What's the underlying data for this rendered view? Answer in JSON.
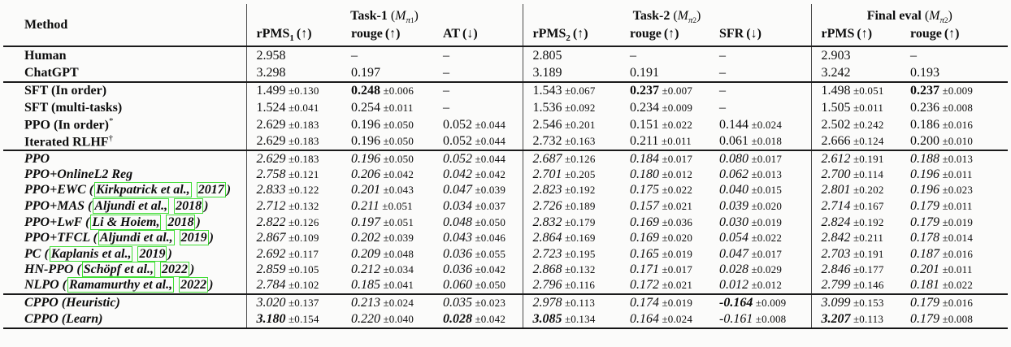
{
  "colors": {
    "citation_link_box": "#3fdd34",
    "rule": "#1b1b1b",
    "text": "#0d0d0d"
  },
  "header": {
    "method_label": "Method",
    "groups": [
      {
        "label": "Task-1",
        "mopen": " (",
        "mvar": "M",
        "msub": "π",
        "msubsub": "1",
        "mclose": ")",
        "cols": [
          {
            "label": "rPMS",
            "sub": "1",
            "arrow": "(↑)"
          },
          {
            "label": "rouge",
            "sub": "",
            "arrow": "(↑)"
          },
          {
            "label": "AT",
            "sub": "",
            "arrow": "(↓)"
          }
        ]
      },
      {
        "label": "Task-2",
        "mopen": " (",
        "mvar": "M",
        "msub": "π",
        "msubsub": "2",
        "mclose": ")",
        "cols": [
          {
            "label": "rPMS",
            "sub": "2",
            "arrow": "(↑)"
          },
          {
            "label": "rouge",
            "sub": "",
            "arrow": "(↑)"
          },
          {
            "label": "SFR",
            "sub": "",
            "arrow": "(↓)"
          }
        ]
      },
      {
        "label": "Final eval",
        "mopen": " (",
        "mvar": "M",
        "msub": "π",
        "msubsub": "2",
        "mclose": ")",
        "cols": [
          {
            "label": "rPMS",
            "sub": "",
            "arrow": "(↑)"
          },
          {
            "label": "rouge",
            "sub": "",
            "arrow": "(↑)"
          }
        ]
      }
    ]
  },
  "blocks": [
    {
      "style": "roman",
      "rows": [
        {
          "method": {
            "text": "Human"
          },
          "cells": [
            {
              "v": "2.958"
            },
            {
              "v": "–"
            },
            {
              "v": "–"
            },
            {
              "v": "2.805"
            },
            {
              "v": "–"
            },
            {
              "v": "–"
            },
            {
              "v": "2.903"
            },
            {
              "v": "–"
            }
          ]
        },
        {
          "method": {
            "text": "ChatGPT"
          },
          "cells": [
            {
              "v": "3.298"
            },
            {
              "v": "0.197"
            },
            {
              "v": "–"
            },
            {
              "v": "3.189"
            },
            {
              "v": "0.191"
            },
            {
              "v": "–"
            },
            {
              "v": "3.242"
            },
            {
              "v": "0.193"
            }
          ]
        }
      ]
    },
    {
      "style": "roman",
      "rows": [
        {
          "method": {
            "text": "SFT (In order)"
          },
          "cells": [
            {
              "v": "1.499",
              "pm": "±0.130"
            },
            {
              "v": "0.248",
              "pm": "±0.006",
              "b": true
            },
            {
              "v": "–"
            },
            {
              "v": "1.543",
              "pm": "±0.067"
            },
            {
              "v": "0.237",
              "pm": "±0.007",
              "b": true
            },
            {
              "v": "–"
            },
            {
              "v": "1.498",
              "pm": "±0.051"
            },
            {
              "v": "0.237",
              "pm": "±0.009",
              "b": true
            }
          ]
        },
        {
          "method": {
            "text": "SFT (multi-tasks)"
          },
          "cells": [
            {
              "v": "1.524",
              "pm": "±0.041"
            },
            {
              "v": "0.254",
              "pm": "±0.011"
            },
            {
              "v": "–"
            },
            {
              "v": "1.536",
              "pm": "±0.092"
            },
            {
              "v": "0.234",
              "pm": "±0.009"
            },
            {
              "v": "–"
            },
            {
              "v": "1.505",
              "pm": "±0.011"
            },
            {
              "v": "0.236",
              "pm": "±0.008"
            }
          ]
        },
        {
          "method": {
            "text": "PPO (In order)",
            "sup": "*"
          },
          "cells": [
            {
              "v": "2.629",
              "pm": "±0.183"
            },
            {
              "v": "0.196",
              "pm": "±0.050"
            },
            {
              "v": "0.052",
              "pm": "±0.044"
            },
            {
              "v": "2.546",
              "pm": "±0.201"
            },
            {
              "v": "0.151",
              "pm": "±0.022"
            },
            {
              "v": "0.144",
              "pm": "±0.024"
            },
            {
              "v": "2.502",
              "pm": "±0.242"
            },
            {
              "v": "0.186",
              "pm": "±0.016"
            }
          ]
        },
        {
          "method": {
            "text": "Iterated RLHF",
            "sup": "†"
          },
          "cells": [
            {
              "v": "2.629",
              "pm": "±0.183"
            },
            {
              "v": "0.196",
              "pm": "±0.050"
            },
            {
              "v": "0.052",
              "pm": "±0.044"
            },
            {
              "v": "2.732",
              "pm": "±0.163"
            },
            {
              "v": "0.211",
              "pm": "±0.011"
            },
            {
              "v": "0.061",
              "pm": "±0.018"
            },
            {
              "v": "2.666",
              "pm": "±0.124"
            },
            {
              "v": "0.200",
              "pm": "±0.010"
            }
          ]
        }
      ]
    },
    {
      "style": "italic",
      "rows": [
        {
          "method": {
            "text": "PPO"
          },
          "cells": [
            {
              "v": "2.629",
              "pm": "±0.183"
            },
            {
              "v": "0.196",
              "pm": "±0.050"
            },
            {
              "v": "0.052",
              "pm": "±0.044"
            },
            {
              "v": "2.687",
              "pm": "±0.126"
            },
            {
              "v": "0.184",
              "pm": "±0.017"
            },
            {
              "v": "0.080",
              "pm": "±0.017"
            },
            {
              "v": "2.612",
              "pm": "±0.191"
            },
            {
              "v": "0.188",
              "pm": "±0.013"
            }
          ]
        },
        {
          "method": {
            "text": "PPO+OnlineL2 Reg"
          },
          "cells": [
            {
              "v": "2.758",
              "pm": "±0.121"
            },
            {
              "v": "0.206",
              "pm": "±0.042"
            },
            {
              "v": "0.042",
              "pm": "±0.042"
            },
            {
              "v": "2.701",
              "pm": "±0.205"
            },
            {
              "v": "0.180",
              "pm": "±0.012"
            },
            {
              "v": "0.062",
              "pm": "±0.013"
            },
            {
              "v": "2.700",
              "pm": "±0.114"
            },
            {
              "v": "0.196",
              "pm": "±0.011"
            }
          ]
        },
        {
          "method": {
            "text": "PPO+EWC (",
            "authors": "Kirkpatrick et al.,",
            "year": "2017",
            "close": ")"
          },
          "cells": [
            {
              "v": "2.833",
              "pm": "±0.122"
            },
            {
              "v": "0.201",
              "pm": "±0.043"
            },
            {
              "v": "0.047",
              "pm": "±0.039"
            },
            {
              "v": "2.823",
              "pm": "±0.192"
            },
            {
              "v": "0.175",
              "pm": "±0.022"
            },
            {
              "v": "0.040",
              "pm": "±0.015"
            },
            {
              "v": "2.801",
              "pm": "±0.202"
            },
            {
              "v": "0.196",
              "pm": "±0.023"
            }
          ]
        },
        {
          "method": {
            "text": "PPO+MAS (",
            "authors": "Aljundi et al.,",
            "year": "2018",
            "close": ")"
          },
          "cells": [
            {
              "v": "2.712",
              "pm": "±0.132"
            },
            {
              "v": "0.211",
              "pm": "±0.051"
            },
            {
              "v": "0.034",
              "pm": "±0.037"
            },
            {
              "v": "2.726",
              "pm": "±0.189"
            },
            {
              "v": "0.157",
              "pm": "±0.021"
            },
            {
              "v": "0.039",
              "pm": "±0.020"
            },
            {
              "v": "2.714",
              "pm": "±0.167"
            },
            {
              "v": "0.179",
              "pm": "±0.011"
            }
          ]
        },
        {
          "method": {
            "text": "PPO+LwF (",
            "authors": "Li & Hoiem,",
            "year": "2018",
            "close": ")"
          },
          "cells": [
            {
              "v": "2.822",
              "pm": "±0.126"
            },
            {
              "v": "0.197",
              "pm": "±0.051"
            },
            {
              "v": "0.048",
              "pm": "±0.050"
            },
            {
              "v": "2.832",
              "pm": "±0.179"
            },
            {
              "v": "0.169",
              "pm": "±0.036"
            },
            {
              "v": "0.030",
              "pm": "±0.019"
            },
            {
              "v": "2.824",
              "pm": "±0.192"
            },
            {
              "v": "0.179",
              "pm": "±0.019"
            }
          ]
        },
        {
          "method": {
            "text": "PPO+TFCL (",
            "authors": "Aljundi et al.,",
            "year": "2019",
            "close": ")"
          },
          "cells": [
            {
              "v": "2.867",
              "pm": "±0.109"
            },
            {
              "v": "0.202",
              "pm": "±0.039"
            },
            {
              "v": "0.043",
              "pm": "±0.046"
            },
            {
              "v": "2.864",
              "pm": "±0.169"
            },
            {
              "v": "0.169",
              "pm": "±0.020"
            },
            {
              "v": "0.054",
              "pm": "±0.022"
            },
            {
              "v": "2.842",
              "pm": "±0.211"
            },
            {
              "v": "0.178",
              "pm": "±0.014"
            }
          ]
        },
        {
          "method": {
            "text": "PC (",
            "authors": "Kaplanis et al.,",
            "year": "2019",
            "close": ")"
          },
          "cells": [
            {
              "v": "2.692",
              "pm": "±0.117"
            },
            {
              "v": "0.209",
              "pm": "±0.048"
            },
            {
              "v": "0.036",
              "pm": "±0.055"
            },
            {
              "v": "2.723",
              "pm": "±0.195"
            },
            {
              "v": "0.165",
              "pm": "±0.019"
            },
            {
              "v": "0.047",
              "pm": "±0.017"
            },
            {
              "v": "2.703",
              "pm": "±0.191"
            },
            {
              "v": "0.187",
              "pm": "±0.016"
            }
          ]
        },
        {
          "method": {
            "text": "HN-PPO (",
            "authors": "Schöpf et al.,",
            "year": "2022",
            "close": ")"
          },
          "cells": [
            {
              "v": "2.859",
              "pm": "±0.105"
            },
            {
              "v": "0.212",
              "pm": "±0.034"
            },
            {
              "v": "0.036",
              "pm": "±0.042"
            },
            {
              "v": "2.868",
              "pm": "±0.132"
            },
            {
              "v": "0.171",
              "pm": "±0.017"
            },
            {
              "v": "0.028",
              "pm": "±0.029"
            },
            {
              "v": "2.846",
              "pm": "±0.177"
            },
            {
              "v": "0.201",
              "pm": "±0.011"
            }
          ]
        },
        {
          "method": {
            "text": "NLPO (",
            "authors": "Ramamurthy et al.,",
            "year": "2022",
            "close": ")"
          },
          "cells": [
            {
              "v": "2.784",
              "pm": "±0.102"
            },
            {
              "v": "0.185",
              "pm": "±0.041"
            },
            {
              "v": "0.060",
              "pm": "±0.050"
            },
            {
              "v": "2.796",
              "pm": "±0.116"
            },
            {
              "v": "0.172",
              "pm": "±0.021"
            },
            {
              "v": "0.012",
              "pm": "±0.012"
            },
            {
              "v": "2.799",
              "pm": "±0.146"
            },
            {
              "v": "0.181",
              "pm": "±0.022"
            }
          ]
        }
      ]
    },
    {
      "style": "italic",
      "rows": [
        {
          "method": {
            "text": "CPPO (Heuristic)"
          },
          "cells": [
            {
              "v": "3.020",
              "pm": "±0.137"
            },
            {
              "v": "0.213",
              "pm": "±0.024"
            },
            {
              "v": "0.035",
              "pm": "±0.023"
            },
            {
              "v": "2.978",
              "pm": "±0.113"
            },
            {
              "v": "0.174",
              "pm": "±0.019"
            },
            {
              "v": "-0.164",
              "pm": "±0.009",
              "b": true
            },
            {
              "v": "3.099",
              "pm": "±0.153"
            },
            {
              "v": "0.179",
              "pm": "±0.016"
            }
          ]
        },
        {
          "method": {
            "text": "CPPO (Learn)"
          },
          "cells": [
            {
              "v": "3.180",
              "pm": "±0.154",
              "b": true
            },
            {
              "v": "0.220",
              "pm": "±0.040"
            },
            {
              "v": "0.028",
              "pm": "±0.042",
              "b": true
            },
            {
              "v": "3.085",
              "pm": "±0.134",
              "b": true
            },
            {
              "v": "0.164",
              "pm": "±0.024"
            },
            {
              "v": "-0.161",
              "pm": "±0.008"
            },
            {
              "v": "3.207",
              "pm": "±0.113",
              "b": true
            },
            {
              "v": "0.179",
              "pm": "±0.008"
            }
          ]
        }
      ]
    }
  ]
}
